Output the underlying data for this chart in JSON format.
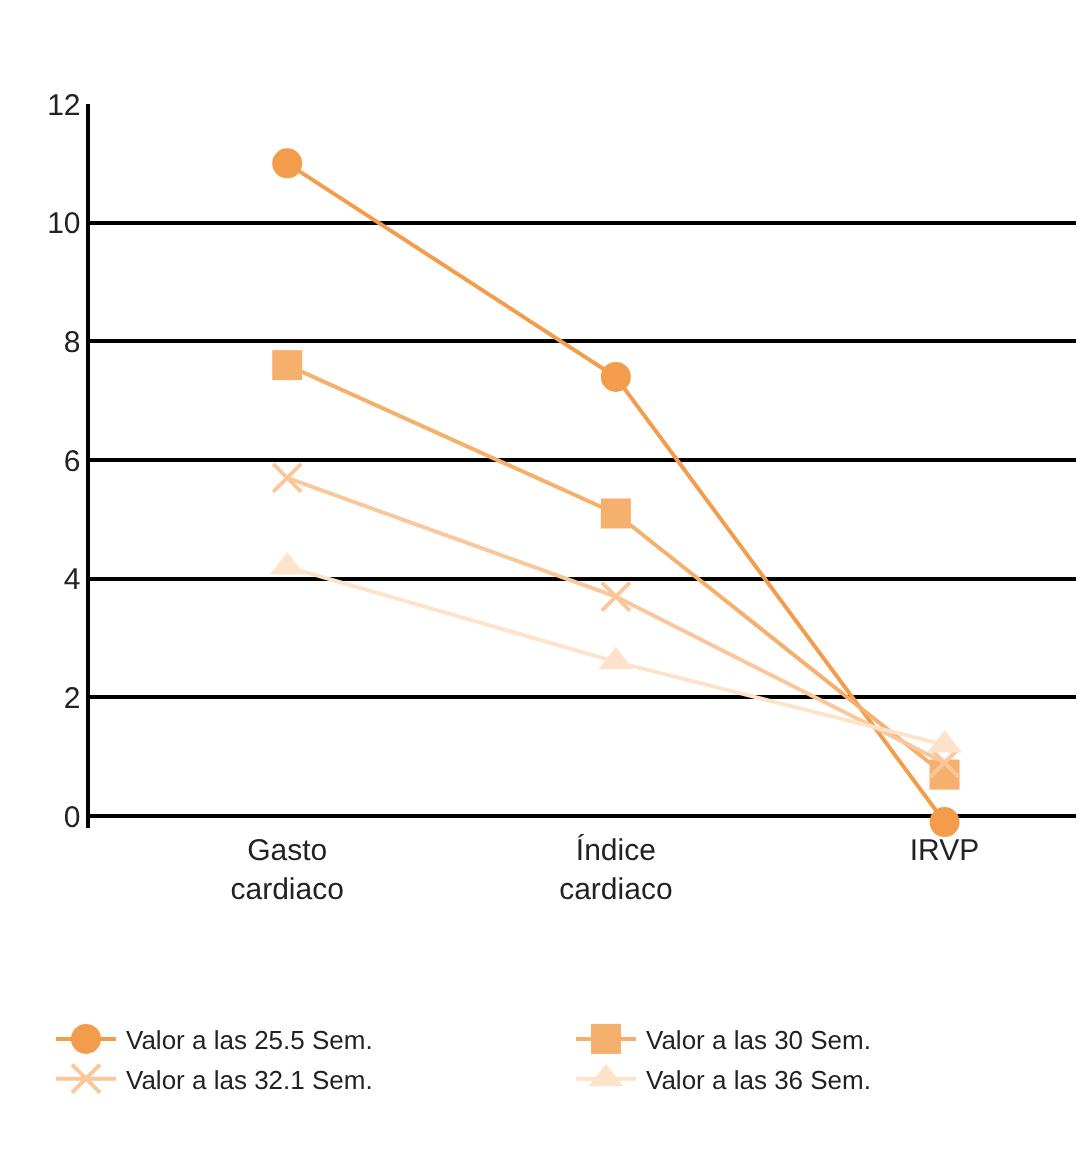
{
  "chart_data": {
    "type": "line",
    "categories": [
      "Gasto cardiaco",
      "Índice cardiaco",
      "IRVP"
    ],
    "series": [
      {
        "name": "Valor a las 25.5 Sem.",
        "color": "#f39c4c",
        "marker": "circle",
        "values": [
          11.0,
          7.4,
          -0.1
        ]
      },
      {
        "name": "Valor a las 30 Sem.",
        "color": "#f6b06e",
        "marker": "square",
        "values": [
          7.6,
          5.1,
          0.7
        ]
      },
      {
        "name": "Valor a las 32.1 Sem.",
        "color": "#f9c79a",
        "marker": "cross",
        "values": [
          5.7,
          3.7,
          0.9
        ]
      },
      {
        "name": "Valor a las 36 Sem.",
        "color": "#fce3c9",
        "marker": "triangle",
        "values": [
          4.2,
          2.6,
          1.2
        ]
      }
    ],
    "ylim": [
      -0.2,
      12
    ],
    "yticks": [
      0,
      2,
      4,
      6,
      8,
      10,
      12
    ],
    "grid": "y",
    "legend": "bottom",
    "line_style": "solid"
  }
}
